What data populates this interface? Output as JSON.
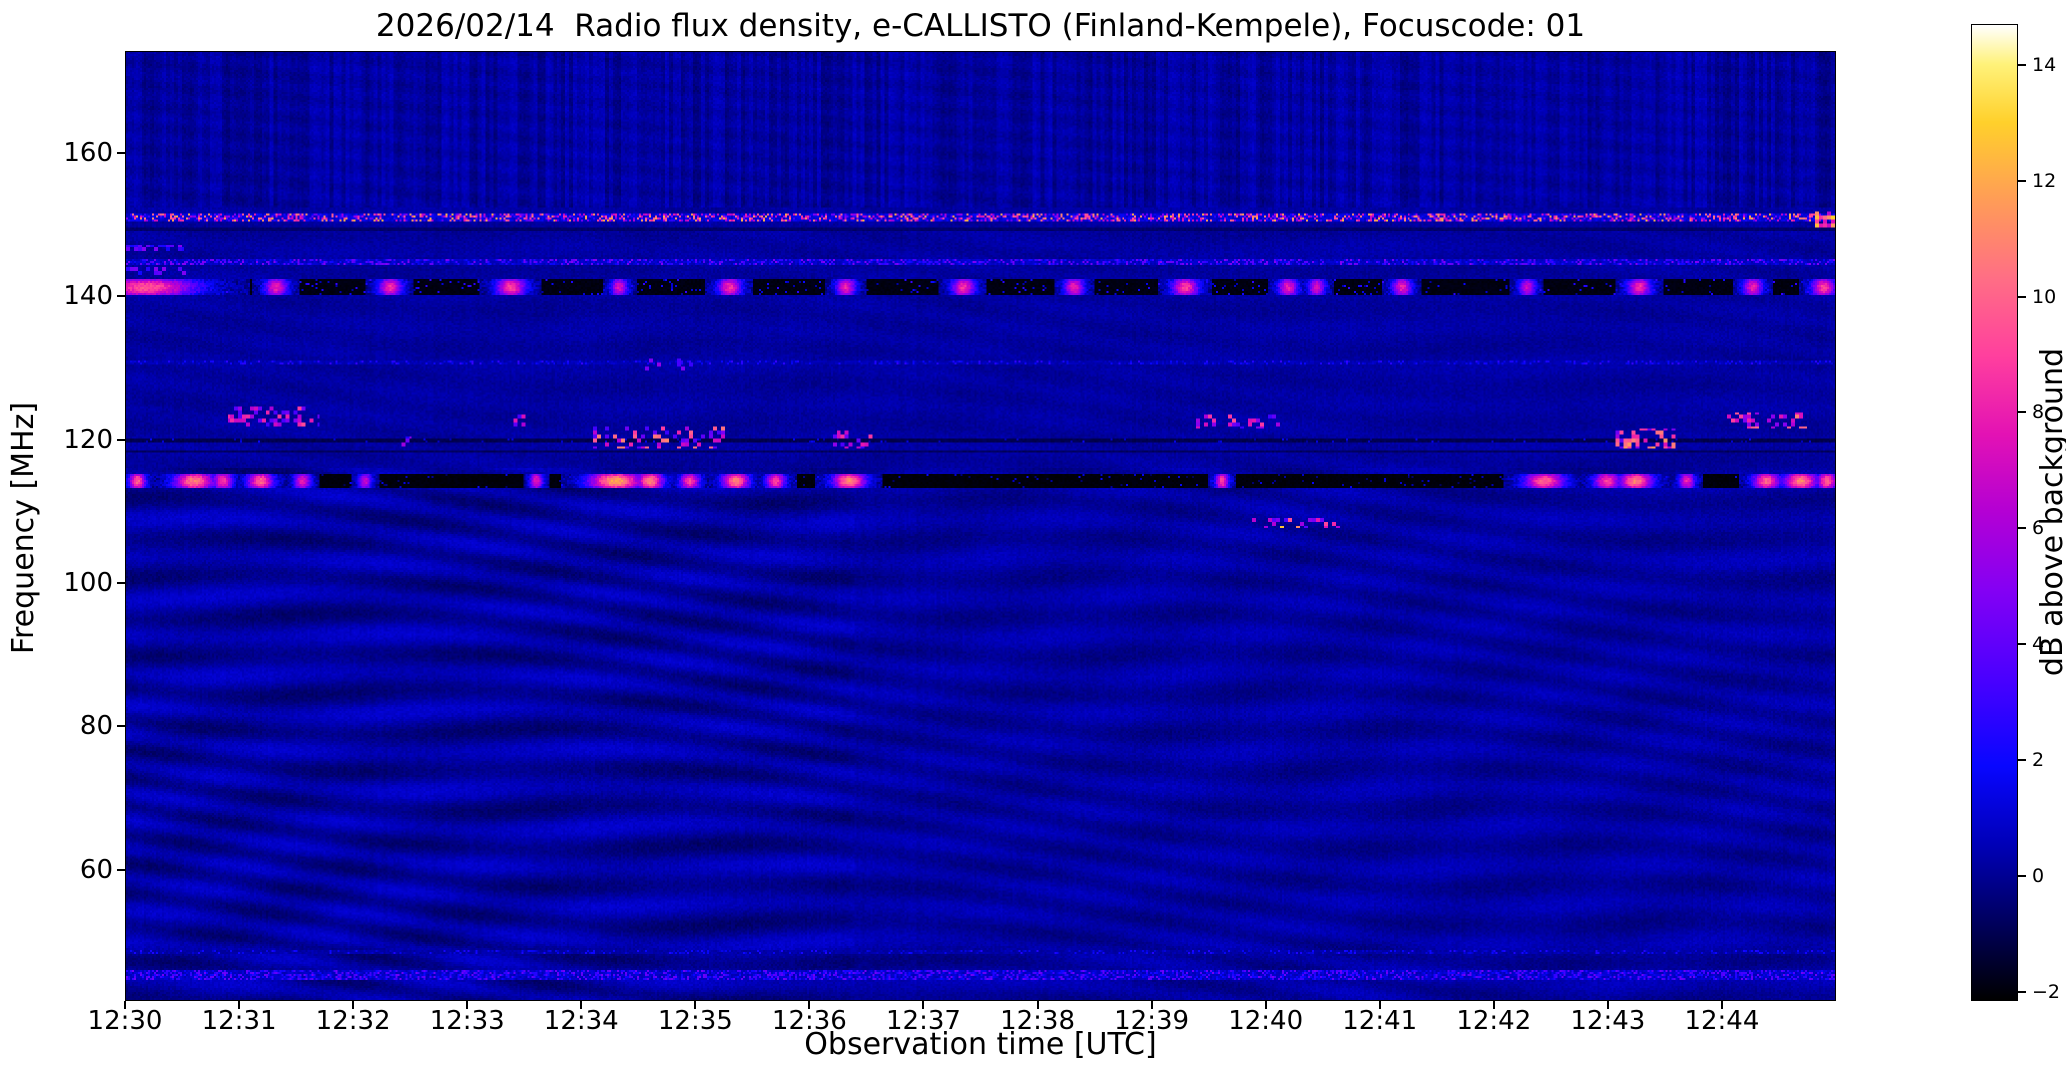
{
  "chart_data": {
    "type": "heatmap",
    "title": "2026/02/14  Radio flux density, e-CALLISTO (Finland-Kempele), Focuscode: 01",
    "date": "2026/02/14",
    "station": "Finland-Kempele",
    "focuscode": "01",
    "xlabel": "Observation time [UTC]",
    "ylabel": "Frequency [MHz]",
    "colorbar_label": "dB above background",
    "time_start_utc": "12:30",
    "time_end_utc": "12:45",
    "x_ticks": [
      {
        "t": 0,
        "label": "12:30"
      },
      {
        "t": 1,
        "label": "12:31"
      },
      {
        "t": 2,
        "label": "12:32"
      },
      {
        "t": 3,
        "label": "12:33"
      },
      {
        "t": 4,
        "label": "12:34"
      },
      {
        "t": 5,
        "label": "12:35"
      },
      {
        "t": 6,
        "label": "12:36"
      },
      {
        "t": 7,
        "label": "12:37"
      },
      {
        "t": 8,
        "label": "12:38"
      },
      {
        "t": 9,
        "label": "12:39"
      },
      {
        "t": 10,
        "label": "12:40"
      },
      {
        "t": 11,
        "label": "12:41"
      },
      {
        "t": 12,
        "label": "12:42"
      },
      {
        "t": 13,
        "label": "12:43"
      },
      {
        "t": 14,
        "label": "12:44"
      }
    ],
    "x_span_minutes": 15,
    "y_ticks": [
      60,
      80,
      100,
      120,
      140,
      160
    ],
    "freq_range_mhz": [
      41.7,
      174.2
    ],
    "value_range_db": [
      -2.15,
      14.7
    ],
    "colorbar_ticks": [
      -2,
      0,
      2,
      4,
      6,
      8,
      10,
      12,
      14
    ],
    "background_db": 0,
    "colormap_stops": [
      [
        0.0,
        "#000000"
      ],
      [
        0.08,
        "#00005e"
      ],
      [
        0.16,
        "#0000b8"
      ],
      [
        0.24,
        "#0806ff"
      ],
      [
        0.33,
        "#4a00ff"
      ],
      [
        0.42,
        "#8400f4"
      ],
      [
        0.5,
        "#b300d4"
      ],
      [
        0.58,
        "#e312b4"
      ],
      [
        0.66,
        "#ff3f9e"
      ],
      [
        0.74,
        "#ff6e85"
      ],
      [
        0.82,
        "#ff9c57"
      ],
      [
        0.9,
        "#ffd02b"
      ],
      [
        0.96,
        "#fff27a"
      ],
      [
        1.0,
        "#ffffff"
      ]
    ],
    "texture": {
      "base": 0.18,
      "noise_amp": 0.5,
      "ripple_amp_strong": 0.5,
      "ripple_amp_weak": 0.3,
      "ripple_amp_high": 0.13,
      "stripe_amp": 0.42,
      "stripe_region_min_mhz": 152.5,
      "strong_ripple_end_minute": 6.4,
      "ripple_region_max_mhz": 116
    },
    "bands": [
      {
        "name": "rfi-speckle-151",
        "f0": 151.1,
        "hw": 0.65,
        "base": 1.2,
        "noise": 1.2,
        "speckle": {
          "prob": 0.45,
          "min": 2,
          "max": 12.5
        }
      },
      {
        "name": "dark-line-149",
        "f0": 149.4,
        "hw": 0.3,
        "base": -0.6,
        "noise": 0.4
      },
      {
        "name": "speckle-line-145",
        "f0": 144.8,
        "hw": 0.4,
        "base": 0.8,
        "noise": 0.8,
        "speckle": {
          "prob": 0.4,
          "min": 1,
          "max": 5
        }
      },
      {
        "name": "dark-band-141",
        "f0": 141.3,
        "hw": 1.05,
        "base": -1.9,
        "noise": 0.25,
        "speckle": {
          "prob": 0.06,
          "min": 0,
          "max": 3
        },
        "bursts": [
          {
            "t": 0.18,
            "w": 0.3,
            "p": 9.5
          },
          {
            "t": 1.32,
            "w": 0.07,
            "p": 8
          },
          {
            "t": 2.32,
            "w": 0.07,
            "p": 8.5
          },
          {
            "t": 3.38,
            "w": 0.09,
            "p": 9
          },
          {
            "t": 4.33,
            "w": 0.05,
            "p": 7.5
          },
          {
            "t": 5.3,
            "w": 0.07,
            "p": 8.5
          },
          {
            "t": 6.32,
            "w": 0.06,
            "p": 8
          },
          {
            "t": 7.35,
            "w": 0.07,
            "p": 8.5
          },
          {
            "t": 8.32,
            "w": 0.06,
            "p": 8
          },
          {
            "t": 9.3,
            "w": 0.08,
            "p": 9
          },
          {
            "t": 10.2,
            "w": 0.06,
            "p": 8
          },
          {
            "t": 10.45,
            "w": 0.05,
            "p": 7.5
          },
          {
            "t": 11.2,
            "w": 0.06,
            "p": 8
          },
          {
            "t": 12.3,
            "w": 0.05,
            "p": 7
          },
          {
            "t": 13.28,
            "w": 0.07,
            "p": 8.5
          },
          {
            "t": 14.28,
            "w": 0.06,
            "p": 8
          },
          {
            "t": 14.9,
            "w": 0.07,
            "p": 9
          }
        ]
      },
      {
        "name": "speckle-line-131",
        "f0": 130.8,
        "hw": 0.3,
        "base": 0.5,
        "noise": 0.6,
        "speckle": {
          "prob": 0.25,
          "min": 0.5,
          "max": 3
        }
      },
      {
        "name": "dark-line-120",
        "f0": 119.9,
        "hw": 0.3,
        "base": -1.0,
        "noise": 0.4,
        "speckle": {
          "prob": 0.05,
          "min": 0,
          "max": 2
        }
      },
      {
        "name": "dark-line-118",
        "f0": 118.4,
        "hw": 0.25,
        "base": -0.8,
        "noise": 0.4
      },
      {
        "name": "dark-band-114",
        "f0": 114.2,
        "hw": 0.95,
        "base": -2.0,
        "noise": 0.2,
        "speckle": {
          "prob": 0.04,
          "min": -1,
          "max": 2
        },
        "bursts": [
          {
            "t": 0.1,
            "w": 0.05,
            "p": 10
          },
          {
            "t": 0.6,
            "w": 0.12,
            "p": 11
          },
          {
            "t": 0.85,
            "w": 0.06,
            "p": 9
          },
          {
            "t": 1.18,
            "w": 0.08,
            "p": 10
          },
          {
            "t": 1.55,
            "w": 0.05,
            "p": 8
          },
          {
            "t": 2.1,
            "w": 0.04,
            "p": 7
          },
          {
            "t": 3.6,
            "w": 0.04,
            "p": 8
          },
          {
            "t": 4.3,
            "w": 0.16,
            "p": 12
          },
          {
            "t": 4.6,
            "w": 0.08,
            "p": 11
          },
          {
            "t": 4.95,
            "w": 0.06,
            "p": 9
          },
          {
            "t": 5.35,
            "w": 0.08,
            "p": 11
          },
          {
            "t": 5.7,
            "w": 0.06,
            "p": 9
          },
          {
            "t": 6.35,
            "w": 0.1,
            "p": 11
          },
          {
            "t": 9.62,
            "w": 0.04,
            "p": 9
          },
          {
            "t": 12.45,
            "w": 0.12,
            "p": 10
          },
          {
            "t": 13.0,
            "w": 0.08,
            "p": 9
          },
          {
            "t": 13.25,
            "w": 0.1,
            "p": 11
          },
          {
            "t": 13.7,
            "w": 0.05,
            "p": 8
          },
          {
            "t": 14.4,
            "w": 0.08,
            "p": 10
          },
          {
            "t": 14.7,
            "w": 0.1,
            "p": 11
          },
          {
            "t": 14.93,
            "w": 0.06,
            "p": 10
          }
        ]
      },
      {
        "name": "speckle-band-45",
        "f0": 45.2,
        "hw": 0.6,
        "base": 0.8,
        "noise": 0.8,
        "speckle": {
          "prob": 0.45,
          "min": 1,
          "max": 4.5
        }
      },
      {
        "name": "speckle-line-48",
        "f0": 48.3,
        "hw": 0.25,
        "base": 0.3,
        "noise": 0.5,
        "speckle": {
          "prob": 0.2,
          "min": 0.5,
          "max": 2.5
        }
      }
    ],
    "clusters": [
      {
        "t0": 0.0,
        "t1": 0.55,
        "fl": 143.0,
        "fh": 144.2,
        "prob": 0.35,
        "min": 2,
        "max": 6
      },
      {
        "t0": 0.0,
        "t1": 0.5,
        "fl": 146.5,
        "fh": 147.3,
        "prob": 0.5,
        "min": 2,
        "max": 5
      },
      {
        "t0": 0.9,
        "t1": 1.7,
        "fl": 121.8,
        "fh": 124.6,
        "prob": 0.4,
        "min": 3,
        "max": 9.5
      },
      {
        "t0": 2.3,
        "t1": 2.5,
        "fl": 119.0,
        "fh": 120.5,
        "prob": 0.25,
        "min": 2,
        "max": 6
      },
      {
        "t0": 3.3,
        "t1": 3.5,
        "fl": 122.0,
        "fh": 123.5,
        "prob": 0.3,
        "min": 3,
        "max": 8
      },
      {
        "t0": 4.1,
        "t1": 5.25,
        "fl": 118.8,
        "fh": 121.8,
        "prob": 0.35,
        "min": 3,
        "max": 11
      },
      {
        "t0": 4.55,
        "t1": 5.05,
        "fl": 129.8,
        "fh": 131.3,
        "prob": 0.15,
        "min": 2,
        "max": 6
      },
      {
        "t0": 6.2,
        "t1": 6.55,
        "fl": 118.8,
        "fh": 121.3,
        "prob": 0.3,
        "min": 3,
        "max": 9
      },
      {
        "t0": 9.4,
        "t1": 10.15,
        "fl": 121.5,
        "fh": 123.6,
        "prob": 0.35,
        "min": 3,
        "max": 10
      },
      {
        "t0": 9.85,
        "t1": 10.65,
        "fl": 107.7,
        "fh": 109.2,
        "prob": 0.3,
        "min": 3,
        "max": 13
      },
      {
        "t0": 13.05,
        "t1": 13.6,
        "fl": 118.8,
        "fh": 121.6,
        "prob": 0.4,
        "min": 4,
        "max": 12
      },
      {
        "t0": 14.05,
        "t1": 14.75,
        "fl": 121.5,
        "fh": 123.8,
        "prob": 0.4,
        "min": 4,
        "max": 11
      },
      {
        "t0": 14.82,
        "t1": 15.0,
        "fl": 149.8,
        "fh": 151.8,
        "prob": 0.7,
        "min": 6,
        "max": 13
      }
    ]
  }
}
